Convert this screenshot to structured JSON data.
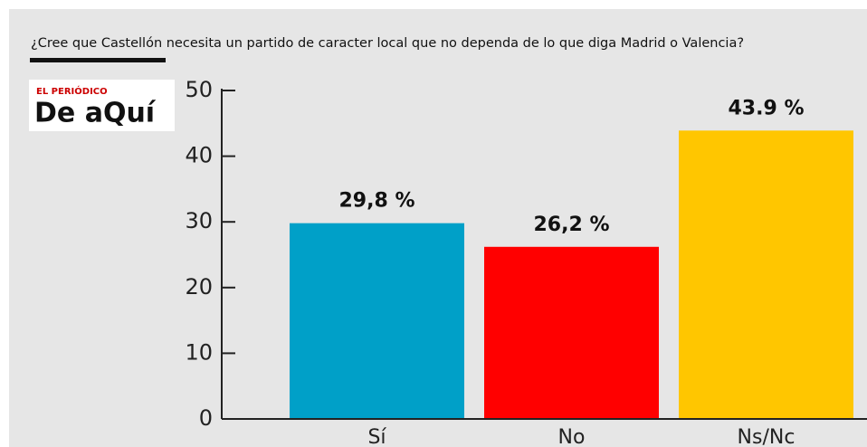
{
  "logo": {
    "top": "EL PERIÓDICO",
    "main": "De aQuí"
  },
  "chart_data": {
    "type": "bar",
    "title": "¿Cree que Castellón necesita un partido de caracter local que no dependa de lo que diga Madrid o Valencia?",
    "categories": [
      "Sí",
      "No",
      "Ns/Nc"
    ],
    "values": [
      29.8,
      26.2,
      43.9
    ],
    "value_labels": [
      "29,8 %",
      "26,2 %",
      "43.9 %"
    ],
    "colors": [
      "#00a0c8",
      "#ff0000",
      "#ffc600"
    ],
    "ylim": [
      0,
      50
    ],
    "yticks": [
      0,
      10,
      20,
      30,
      40,
      50
    ]
  }
}
